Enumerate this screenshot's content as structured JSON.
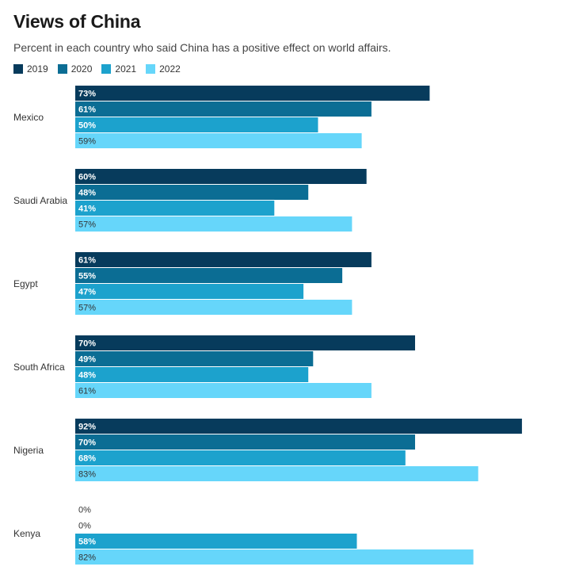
{
  "chart_data": {
    "type": "bar",
    "orientation": "horizontal",
    "title": "Views of China",
    "subtitle": "Percent in each country who said China has a positive effect on world affairs.",
    "categories": [
      "Mexico",
      "Saudi Arabia",
      "Egypt",
      "South Africa",
      "Nigeria",
      "Kenya"
    ],
    "series": [
      {
        "name": "2019",
        "color": "#073b5c",
        "values": [
          73,
          60,
          61,
          70,
          92,
          0
        ]
      },
      {
        "name": "2020",
        "color": "#0b6d94",
        "values": [
          61,
          48,
          55,
          49,
          70,
          0
        ]
      },
      {
        "name": "2021",
        "color": "#1ca2cd",
        "values": [
          50,
          41,
          47,
          48,
          68,
          58
        ]
      },
      {
        "name": "2022",
        "color": "#66d6fa",
        "values": [
          59,
          57,
          57,
          61,
          83,
          82
        ]
      }
    ],
    "value_suffix": "%",
    "xlim": [
      0,
      93
    ],
    "legend_position": "top-left",
    "grid": false
  }
}
